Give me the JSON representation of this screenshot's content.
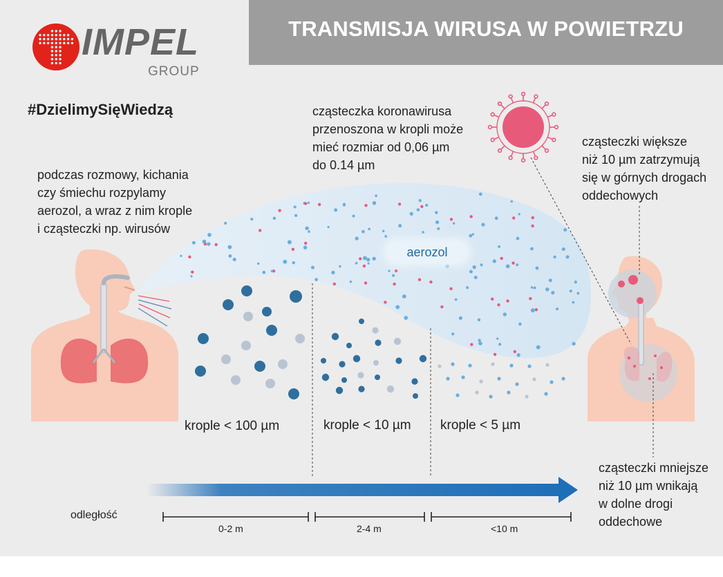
{
  "header": {
    "title": "TRANSMISJA WIRUSA W POWIETRZU"
  },
  "brand": {
    "name": "IMPEL",
    "sub": "GROUP"
  },
  "hashtag": "#DzielimySięWiedzą",
  "notes": {
    "speech": [
      "podczas rozmowy, kichania",
      "czy śmiechu rozpylamy",
      "aerozol, a wraz z nim krople",
      "i cząsteczki np. wirusów"
    ],
    "virus_size": [
      "cząsteczka koronawirusa",
      "przenoszona w kropli może",
      "mieć rozmiar od 0,06 µm",
      "do 0.14 µm"
    ],
    "large_particles": [
      "cząsteczki większe",
      "niż 10 µm zatrzymują",
      "się w górnych drogach",
      "oddechowych"
    ],
    "small_particles": [
      "cząsteczki mniejsze",
      "niż 10 µm wnikają",
      "w dolne drogi",
      "oddechowe"
    ]
  },
  "aerosol_label": "aerozol",
  "droplet_labels": [
    "krople < 100 µm",
    "krople < 10 µm",
    "krople < 5 µm"
  ],
  "distance": {
    "label": "odległość",
    "segments": [
      "0-2 m",
      "2-4 m",
      "<10 m"
    ]
  },
  "colors": {
    "header_bg": "#9d9d9d",
    "arrow": "#1f6fb8",
    "virus": "#e85a7a",
    "cloud": "#dcebf6",
    "droplet_dark": "#2f6f9e",
    "droplet_light": "#b9c4d3"
  }
}
